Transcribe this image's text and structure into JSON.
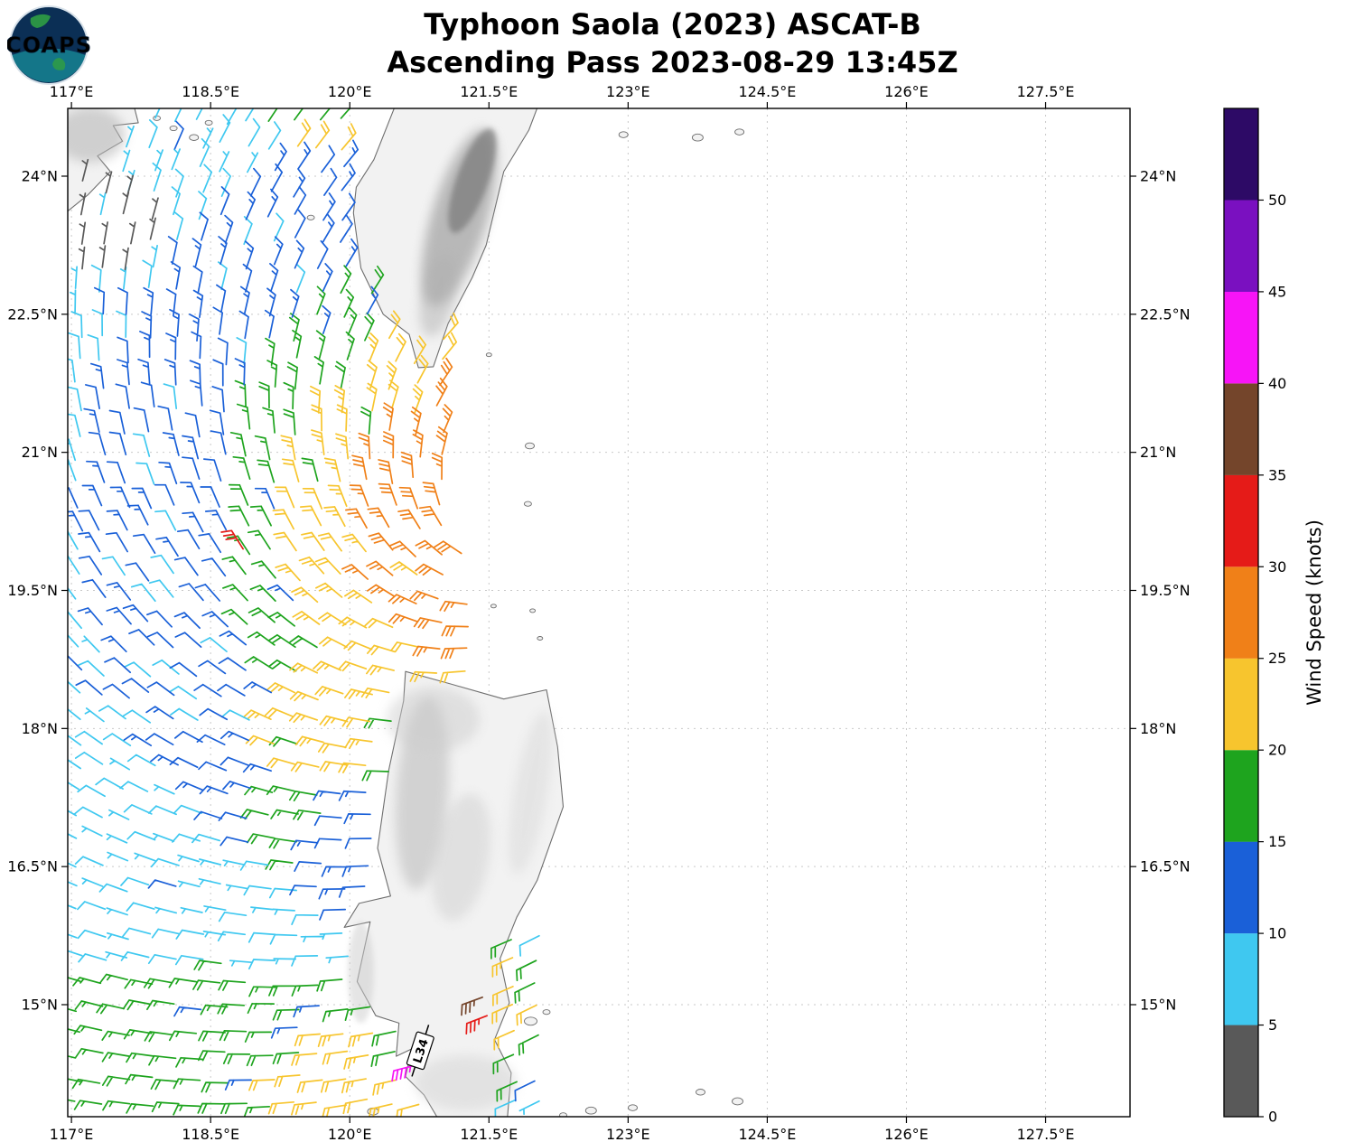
{
  "header": {
    "logo_text": "COAPS",
    "title_line1": "Typhoon Saola (2023) ASCAT-B",
    "title_line2": "Ascending Pass 2023-08-29 13:45Z"
  },
  "palette": {
    "land_fill": "#f2f2f2",
    "coast": "#6e6e6e",
    "grid": "#c9c9c9",
    "frame": "#000000"
  },
  "chart_data": {
    "type": "wind_barb_map",
    "title": "Typhoon Saola (2023) ASCAT-B",
    "subtitle": "Ascending Pass 2023-08-29 13:45Z",
    "projection": {
      "lon_min": 116.96,
      "lon_max": 128.41,
      "lat_min": 13.783,
      "lat_max": 24.736
    },
    "x_axis": {
      "tick_values": [
        117,
        118.5,
        120,
        121.5,
        123,
        124.5,
        126,
        127.5
      ],
      "tick_labels": [
        "117°E",
        "118.5°E",
        "120°E",
        "121.5°E",
        "123°E",
        "124.5°E",
        "126°E",
        "127.5°E"
      ]
    },
    "y_axis": {
      "tick_values": [
        15,
        16.5,
        18,
        19.5,
        21,
        22.5,
        24
      ],
      "tick_labels": [
        "15°N",
        "16.5°N",
        "18°N",
        "19.5°N",
        "21°N",
        "22.5°N",
        "24°N"
      ]
    },
    "colorbar": {
      "label": "Wind Speed (knots)",
      "tick_values": [
        0,
        5,
        10,
        15,
        20,
        25,
        30,
        35,
        40,
        45,
        50
      ],
      "value_max": 55,
      "segments": [
        {
          "from": 0,
          "to": 5,
          "color": "#595959"
        },
        {
          "from": 5,
          "to": 10,
          "color": "#3fc8f0"
        },
        {
          "from": 10,
          "to": 15,
          "color": "#1a60d8"
        },
        {
          "from": 15,
          "to": 20,
          "color": "#1ea41e"
        },
        {
          "from": 20,
          "to": 25,
          "color": "#f7c52e"
        },
        {
          "from": 25,
          "to": 30,
          "color": "#f08018"
        },
        {
          "from": 30,
          "to": 35,
          "color": "#e51b18"
        },
        {
          "from": 35,
          "to": 40,
          "color": "#74452b"
        },
        {
          "from": 40,
          "to": 45,
          "color": "#f714f7"
        },
        {
          "from": 45,
          "to": 50,
          "color": "#7a10c0"
        },
        {
          "from": 50,
          "to": 55,
          "color": "#2d0a66"
        }
      ]
    },
    "barb_convention": {
      "half_barb_knots": 5,
      "full_barb_knots": 10
    },
    "annotation": {
      "text": "L34",
      "lon": 120.76,
      "lat": 14.5,
      "rotation_deg": -72
    },
    "wind_field": {
      "description": "Approximation of ASCAT-B swath winds: cyclonic flow around Typhoon Saola centered near the Luzon Strait; swath covers ~117E-122.3E",
      "center": {
        "lon": 121.9,
        "lat": 20.3
      },
      "inflow_deg": 25,
      "grid_spacing_deg": 0.26,
      "lon_start": 117.08,
      "lon_end": 122.38,
      "lat_start": 13.93,
      "lat_end": 24.7,
      "speed_rings_knots": [
        [
          1.75,
          27
        ],
        [
          2.45,
          22
        ],
        [
          3.1,
          17
        ],
        [
          4.55,
          12
        ],
        [
          99,
          8
        ]
      ],
      "swath_edge_lat_lonmax": [
        [
          13.78,
          122.05
        ],
        [
          15.8,
          122.05
        ],
        [
          15.81,
          121.4
        ],
        [
          19.5,
          121.3
        ],
        [
          20.8,
          121.05
        ],
        [
          22.2,
          121.3
        ],
        [
          22.9,
          120.55
        ],
        [
          24.74,
          119.92
        ]
      ],
      "south_boost": {
        "lat_below": 15.45,
        "lon_below": 121.1,
        "min_speed": 17
      },
      "patches": [
        {
          "lon": 119.9,
          "lat": 24.52,
          "rx": 0.8,
          "ry": 0.32,
          "speed": 20,
          "mode": "max"
        },
        {
          "lon": 119.85,
          "lat": 18.05,
          "rx": 0.8,
          "ry": 0.65,
          "speed": 22,
          "mode": "max"
        },
        {
          "lon": 119.95,
          "lat": 14.28,
          "rx": 0.8,
          "ry": 0.48,
          "speed": 22,
          "mode": "max"
        },
        {
          "lon": 120.3,
          "lat": 13.92,
          "rx": 0.55,
          "ry": 0.3,
          "speed": 22,
          "mode": "max"
        },
        {
          "lon": 121.62,
          "lat": 14.9,
          "rx": 0.52,
          "ry": 0.95,
          "speed": 19,
          "mode": "max"
        },
        {
          "lon": 121.5,
          "lat": 15.45,
          "rx": 0.28,
          "ry": 0.38,
          "speed": 23,
          "mode": "max"
        },
        {
          "lon": 119.4,
          "lat": 16.95,
          "rx": 0.42,
          "ry": 0.45,
          "speed": 17,
          "mode": "max"
        },
        {
          "lon": 117.38,
          "lat": 23.3,
          "rx": 0.58,
          "ry": 0.55,
          "speed": 3,
          "mode": "set"
        },
        {
          "lon": 117.15,
          "lat": 24.05,
          "rx": 0.35,
          "ry": 0.42,
          "speed": 3,
          "mode": "set"
        }
      ],
      "outlier_barbs": [
        {
          "lon": 118.85,
          "lat": 19.95,
          "speed": 32
        },
        {
          "lon": 121.43,
          "lat": 15.08,
          "speed": 37
        },
        {
          "lon": 121.48,
          "lat": 14.88,
          "speed": 33
        },
        {
          "lon": 120.7,
          "lat": 14.34,
          "speed": 43
        },
        {
          "lon": 117.12,
          "lat": 23.95,
          "speed": 3
        },
        {
          "lon": 117.6,
          "lat": 23.78,
          "speed": 4
        }
      ]
    }
  },
  "map": {
    "china": [
      [
        116.96,
        23.62
      ],
      [
        117.18,
        23.8
      ],
      [
        117.42,
        24.05
      ],
      [
        117.28,
        24.22
      ],
      [
        117.55,
        24.38
      ],
      [
        117.45,
        24.55
      ],
      [
        117.72,
        24.58
      ],
      [
        117.68,
        24.74
      ],
      [
        116.96,
        24.74
      ]
    ],
    "taiwan": [
      [
        120.04,
        23.6
      ],
      [
        120.12,
        23.0
      ],
      [
        120.36,
        22.5
      ],
      [
        120.64,
        22.28
      ],
      [
        120.74,
        21.92
      ],
      [
        120.9,
        21.93
      ],
      [
        121.06,
        22.4
      ],
      [
        121.32,
        22.9
      ],
      [
        121.47,
        23.25
      ],
      [
        121.66,
        24.05
      ],
      [
        121.93,
        24.5
      ],
      [
        122.02,
        24.74
      ],
      [
        120.48,
        24.74
      ],
      [
        120.26,
        24.18
      ],
      [
        120.07,
        23.88
      ]
    ],
    "luzon": [
      [
        120.6,
        18.62
      ],
      [
        121.1,
        18.48
      ],
      [
        121.66,
        18.32
      ],
      [
        122.12,
        18.42
      ],
      [
        122.24,
        17.8
      ],
      [
        122.3,
        17.15
      ],
      [
        122.02,
        16.35
      ],
      [
        121.8,
        15.95
      ],
      [
        121.62,
        15.5
      ],
      [
        121.72,
        15.02
      ],
      [
        121.56,
        14.62
      ],
      [
        121.74,
        14.26
      ],
      [
        121.7,
        13.78
      ],
      [
        120.94,
        13.78
      ],
      [
        120.8,
        14.02
      ],
      [
        120.6,
        14.22
      ],
      [
        120.67,
        14.52
      ],
      [
        120.5,
        14.44
      ],
      [
        120.53,
        14.8
      ],
      [
        120.28,
        14.88
      ],
      [
        120.08,
        15.25
      ],
      [
        120.22,
        15.9
      ],
      [
        119.94,
        15.84
      ],
      [
        120.1,
        16.1
      ],
      [
        120.44,
        16.18
      ],
      [
        120.3,
        16.7
      ],
      [
        120.42,
        17.55
      ],
      [
        120.58,
        18.3
      ]
    ],
    "islands": [
      {
        "lon": 121.94,
        "lat": 21.07,
        "r": 5
      },
      {
        "lon": 121.92,
        "lat": 20.44,
        "r": 4
      },
      {
        "lon": 121.55,
        "lat": 19.33,
        "r": 3
      },
      {
        "lon": 121.97,
        "lat": 19.28,
        "r": 3
      },
      {
        "lon": 122.05,
        "lat": 18.98,
        "r": 3
      },
      {
        "lon": 119.58,
        "lat": 23.55,
        "r": 4
      },
      {
        "lon": 118.32,
        "lat": 24.42,
        "r": 5
      },
      {
        "lon": 118.1,
        "lat": 24.52,
        "r": 4
      },
      {
        "lon": 117.92,
        "lat": 24.63,
        "r": 4
      },
      {
        "lon": 118.48,
        "lat": 24.58,
        "r": 4
      },
      {
        "lon": 122.95,
        "lat": 24.45,
        "r": 5
      },
      {
        "lon": 123.75,
        "lat": 24.42,
        "r": 6
      },
      {
        "lon": 124.2,
        "lat": 24.48,
        "r": 5
      },
      {
        "lon": 121.5,
        "lat": 22.06,
        "r": 3
      },
      {
        "lon": 121.95,
        "lat": 14.82,
        "r": 7
      },
      {
        "lon": 122.12,
        "lat": 14.92,
        "r": 4
      },
      {
        "lon": 120.25,
        "lat": 13.84,
        "r": 6
      },
      {
        "lon": 122.6,
        "lat": 13.85,
        "r": 6
      },
      {
        "lon": 123.05,
        "lat": 13.88,
        "r": 5
      },
      {
        "lon": 123.78,
        "lat": 14.05,
        "r": 5
      },
      {
        "lon": 124.18,
        "lat": 13.95,
        "r": 6
      },
      {
        "lon": 122.3,
        "lat": 13.8,
        "r": 4
      }
    ],
    "terrain": [
      {
        "lon": 121.18,
        "lat": 23.55,
        "rx": 0.3,
        "ry": 1.0,
        "rot": 17,
        "color": "#9a9a9a",
        "opacity": 0.65,
        "blur": "soft"
      },
      {
        "lon": 121.32,
        "lat": 23.95,
        "rx": 0.17,
        "ry": 0.6,
        "rot": 20,
        "color": "#6e6e6e",
        "opacity": 0.6,
        "blur": "soft2"
      },
      {
        "lon": 120.95,
        "lat": 22.7,
        "rx": 0.18,
        "ry": 0.45,
        "rot": 12,
        "color": "#b0b0b0",
        "opacity": 0.5,
        "blur": "soft"
      },
      {
        "lon": 120.78,
        "lat": 17.3,
        "rx": 0.28,
        "ry": 1.05,
        "rot": 4,
        "color": "#c2c2c2",
        "opacity": 0.65,
        "blur": "soft"
      },
      {
        "lon": 121.2,
        "lat": 16.6,
        "rx": 0.3,
        "ry": 0.7,
        "rot": 10,
        "color": "#cfcfcf",
        "opacity": 0.5,
        "blur": "soft"
      },
      {
        "lon": 121.95,
        "lat": 17.3,
        "rx": 0.18,
        "ry": 0.9,
        "rot": 10,
        "color": "#d8d8d8",
        "opacity": 0.5,
        "blur": "soft"
      },
      {
        "lon": 120.12,
        "lat": 15.35,
        "rx": 0.14,
        "ry": 0.55,
        "rot": 0,
        "color": "#cccccc",
        "opacity": 0.5,
        "blur": "soft2"
      },
      {
        "lon": 121.25,
        "lat": 14.15,
        "rx": 0.55,
        "ry": 0.3,
        "rot": 0,
        "color": "#d6d6d6",
        "opacity": 0.55,
        "blur": "soft"
      },
      {
        "lon": 120.9,
        "lat": 18.1,
        "rx": 0.5,
        "ry": 0.35,
        "rot": 0,
        "color": "#cdcdcd",
        "opacity": 0.5,
        "blur": "soft"
      },
      {
        "lon": 117.2,
        "lat": 24.45,
        "rx": 0.38,
        "ry": 0.3,
        "rot": 0,
        "color": "#b8b8b8",
        "opacity": 0.6,
        "blur": "soft"
      }
    ]
  }
}
